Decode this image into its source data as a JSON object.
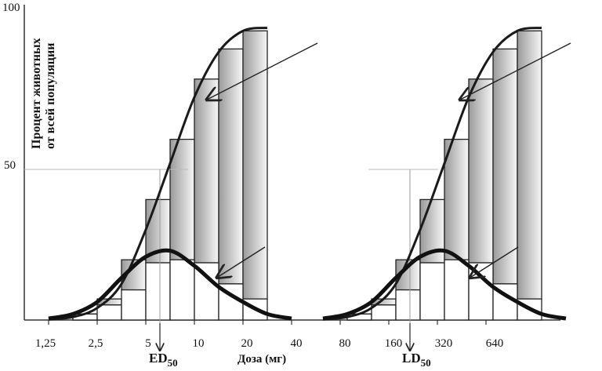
{
  "chart_data": {
    "type": "bar",
    "ylabel_line1": "Процент животных",
    "ylabel_line2": "от всей популяции",
    "y_ticks": [
      "100",
      "50"
    ],
    "ylim": [
      0,
      100
    ],
    "x_tick_labels": [
      "1,25",
      "2,5",
      "5",
      "10",
      "20",
      "40",
      "80",
      "160",
      "320",
      "640"
    ],
    "xlabel": "Доза (мг)",
    "panels": [
      {
        "marker_label": "ED",
        "marker_sub": "50",
        "cumulative": [
          0,
          2,
          7,
          20,
          40,
          60,
          80,
          90,
          96
        ],
        "frequency": [
          0,
          2,
          5,
          10,
          19,
          20,
          19,
          12,
          7
        ],
        "cumulative_curve": [
          [
            0,
            0.2
          ],
          [
            1,
            1
          ],
          [
            2,
            4
          ],
          [
            3,
            12
          ],
          [
            4,
            30
          ],
          [
            5,
            52
          ],
          [
            6,
            74
          ],
          [
            7,
            89
          ],
          [
            8,
            96
          ],
          [
            9,
            97
          ]
        ],
        "frequency_curve": [
          [
            0,
            0.5
          ],
          [
            1,
            2
          ],
          [
            2,
            6
          ],
          [
            3,
            14
          ],
          [
            4,
            21
          ],
          [
            5,
            23
          ],
          [
            6,
            18
          ],
          [
            7,
            11
          ],
          [
            8,
            6
          ],
          [
            9,
            2
          ],
          [
            10,
            0.5
          ]
        ]
      },
      {
        "marker_label": "LD",
        "marker_sub": "50",
        "cumulative": [
          0,
          2,
          7,
          20,
          40,
          60,
          80,
          90,
          96
        ],
        "frequency": [
          0,
          2,
          5,
          10,
          19,
          20,
          19,
          12,
          7
        ],
        "cumulative_curve": [
          [
            0,
            0.2
          ],
          [
            1,
            1
          ],
          [
            2,
            4
          ],
          [
            3,
            12
          ],
          [
            4,
            30
          ],
          [
            5,
            52
          ],
          [
            6,
            74
          ],
          [
            7,
            89
          ],
          [
            8,
            96
          ],
          [
            9,
            97
          ]
        ],
        "frequency_curve": [
          [
            0,
            0.5
          ],
          [
            1,
            2
          ],
          [
            2,
            6
          ],
          [
            3,
            14
          ],
          [
            4,
            21
          ],
          [
            5,
            23
          ],
          [
            6,
            18
          ],
          [
            7,
            11
          ],
          [
            8,
            6
          ],
          [
            9,
            2
          ],
          [
            10,
            0.5
          ]
        ]
      }
    ],
    "grid": false,
    "legend": "none"
  }
}
